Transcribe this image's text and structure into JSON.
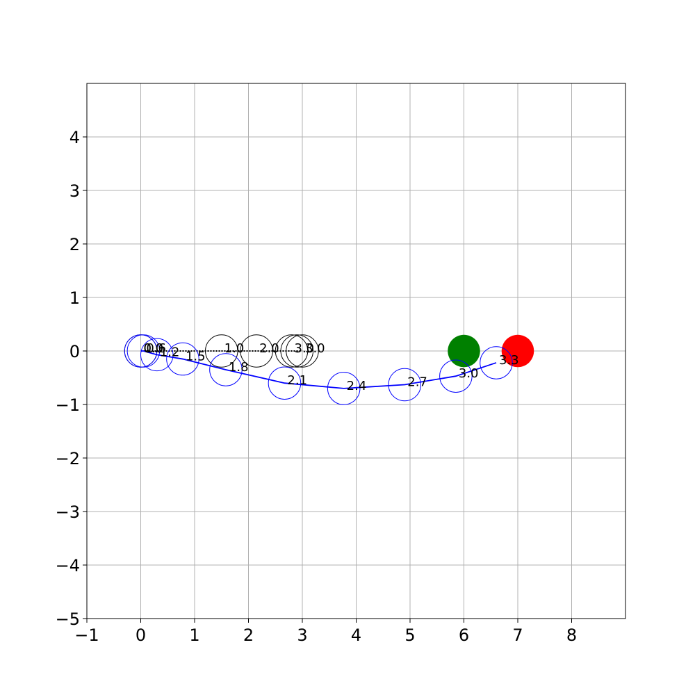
{
  "chart_data": {
    "type": "scatter",
    "xlim": [
      -1,
      9
    ],
    "ylim": [
      -5,
      5
    ],
    "x_ticks": [
      -1,
      0,
      1,
      2,
      3,
      4,
      5,
      6,
      7,
      8
    ],
    "y_ticks": [
      -5,
      -4,
      -3,
      -2,
      -1,
      0,
      1,
      2,
      3,
      4
    ],
    "x_tick_labels": [
      "−1",
      "0",
      "1",
      "2",
      "3",
      "4",
      "5",
      "6",
      "7",
      "8"
    ],
    "y_tick_labels": [
      "−5",
      "−4",
      "−3",
      "−2",
      "−1",
      "0",
      "1",
      "2",
      "3",
      "4"
    ],
    "grid": true,
    "circle_radius": 0.3,
    "series": [
      {
        "color": "#000000",
        "style": "hollow circles on dotted path",
        "points": [
          {
            "x": 0.0,
            "y": 0.0,
            "label": "0.0"
          },
          {
            "x": 1.5,
            "y": 0.0,
            "label": "1.0"
          },
          {
            "x": 2.15,
            "y": 0.0,
            "label": "2.0"
          },
          {
            "x": 2.8,
            "y": 0.0,
            "label": "3.0"
          },
          {
            "x": 2.9,
            "y": 0.0,
            "label": ""
          },
          {
            "x": 3.0,
            "y": 0.0,
            "label": "3.0"
          }
        ]
      },
      {
        "color": "#0000ff",
        "style": "hollow circles on solid path",
        "points": [
          {
            "x": 0.0,
            "y": 0.0,
            "label": "0.0"
          },
          {
            "x": 0.05,
            "y": 0.0,
            "label": "0.6"
          },
          {
            "x": 0.3,
            "y": -0.07,
            "label": "1.2"
          },
          {
            "x": 0.78,
            "y": -0.15,
            "label": "1.5"
          },
          {
            "x": 1.58,
            "y": -0.35,
            "label": "1.8"
          },
          {
            "x": 2.67,
            "y": -0.6,
            "label": "2.1"
          },
          {
            "x": 3.77,
            "y": -0.7,
            "label": "2.4"
          },
          {
            "x": 4.9,
            "y": -0.63,
            "label": "2.7"
          },
          {
            "x": 5.85,
            "y": -0.47,
            "label": "3.0"
          },
          {
            "x": 6.6,
            "y": -0.22,
            "label": "3.3"
          }
        ]
      }
    ],
    "goal_markers": [
      {
        "x": 6.0,
        "y": 0.0,
        "color": "#008000"
      },
      {
        "x": 7.0,
        "y": 0.0,
        "color": "#ff0000"
      }
    ],
    "colors": {
      "grid": "#b0b0b0",
      "axes": "#000000"
    }
  }
}
